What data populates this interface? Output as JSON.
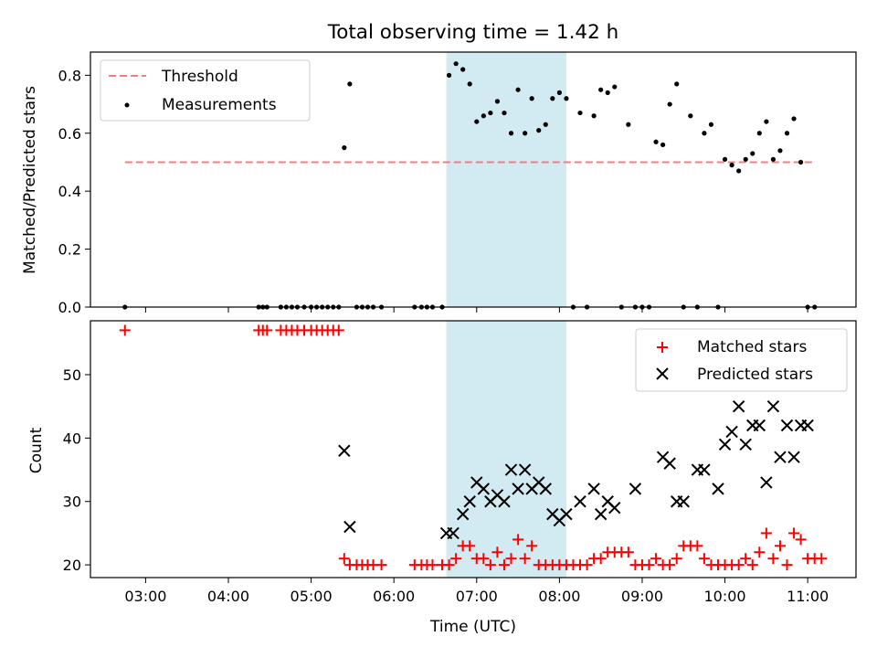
{
  "figure": {
    "title": "Total observing time = 1.42 h"
  },
  "highlight": {
    "x_start": "06:38",
    "x_end": "08:05",
    "color": "#add8e6"
  },
  "colors": {
    "threshold": "#f08080",
    "matched": "#ff0000",
    "predicted": "#000000",
    "measurement": "#000000"
  },
  "chart_data": [
    {
      "type": "scatter",
      "ylabel": "Matched/Predicted stars",
      "xlabel": "",
      "ylim": [
        0,
        0.88
      ],
      "yticks": [
        "0.0",
        "0.2",
        "0.4",
        "0.6",
        "0.8"
      ],
      "legend": {
        "placement": "top-left",
        "entries": [
          "Threshold",
          "Measurements"
        ]
      },
      "series": [
        {
          "name": "Threshold",
          "style": "dashed-line",
          "x": [
            "02:45",
            "11:05"
          ],
          "y": [
            0.5,
            0.5
          ]
        },
        {
          "name": "Measurements",
          "style": "dot",
          "x": [
            "02:45",
            "04:22",
            "04:25",
            "04:28",
            "04:38",
            "04:42",
            "04:46",
            "04:50",
            "04:55",
            "05:00",
            "05:04",
            "05:08",
            "05:12",
            "05:16",
            "05:20",
            "05:24",
            "05:28",
            "05:33",
            "05:37",
            "05:41",
            "05:45",
            "05:51",
            "06:15",
            "06:20",
            "06:24",
            "06:28",
            "06:35",
            "06:40",
            "06:45",
            "06:50",
            "06:55",
            "07:00",
            "07:05",
            "07:10",
            "07:15",
            "07:20",
            "07:25",
            "07:30",
            "07:35",
            "07:40",
            "07:45",
            "07:50",
            "07:55",
            "08:00",
            "08:05",
            "08:10",
            "08:15",
            "08:20",
            "08:25",
            "08:30",
            "08:35",
            "08:40",
            "08:45",
            "08:50",
            "08:55",
            "09:00",
            "09:05",
            "09:10",
            "09:15",
            "09:20",
            "09:25",
            "09:30",
            "09:35",
            "09:40",
            "09:45",
            "09:50",
            "09:55",
            "10:00",
            "10:05",
            "10:10",
            "10:15",
            "10:20",
            "10:25",
            "10:30",
            "10:35",
            "10:40",
            "10:45",
            "10:50",
            "10:55",
            "11:00",
            "11:05"
          ],
          "y": [
            0,
            0,
            0,
            0,
            0,
            0,
            0,
            0,
            0,
            0,
            0,
            0,
            0,
            0,
            0,
            0.55,
            0.77,
            0,
            0,
            0,
            0,
            0,
            0,
            0,
            0,
            0,
            0,
            0.8,
            0.84,
            0.82,
            0.77,
            0.64,
            0.66,
            0.67,
            0.71,
            0.67,
            0.6,
            0.75,
            0.6,
            0.72,
            0.61,
            0.63,
            0.72,
            0.74,
            0.72,
            0,
            0.67,
            0,
            0.66,
            0.75,
            0.74,
            0.76,
            0,
            0.63,
            0,
            0,
            0,
            0.57,
            0.56,
            0.7,
            0.77,
            0,
            0.66,
            0,
            0.6,
            0.63,
            0,
            0.51,
            0.49,
            0.47,
            0.51,
            0.53,
            0.6,
            0.64,
            0.51,
            0.54,
            0.6,
            0.65,
            0.5,
            0,
            0
          ]
        }
      ]
    },
    {
      "type": "scatter",
      "ylabel": "Count",
      "xlabel": "Time (UTC)",
      "ylim": [
        18,
        58.5
      ],
      "yticks": [
        "20",
        "30",
        "40",
        "50"
      ],
      "xticks": [
        "03:00",
        "04:00",
        "05:00",
        "06:00",
        "07:00",
        "08:00",
        "09:00",
        "10:00",
        "11:00"
      ],
      "xlim": [
        "02:20",
        "11:35"
      ],
      "legend": {
        "placement": "top-right",
        "entries": [
          "Matched stars",
          "Predicted stars"
        ]
      },
      "series": [
        {
          "name": "Matched stars",
          "style": "plus",
          "x": [
            "02:45",
            "04:22",
            "04:25",
            "04:28",
            "04:38",
            "04:42",
            "04:46",
            "04:50",
            "04:55",
            "05:00",
            "05:04",
            "05:08",
            "05:12",
            "05:16",
            "05:20",
            "05:24",
            "05:28",
            "05:33",
            "05:37",
            "05:41",
            "05:45",
            "05:51",
            "06:15",
            "06:20",
            "06:24",
            "06:28",
            "06:35",
            "06:40",
            "06:45",
            "06:50",
            "06:55",
            "07:00",
            "07:05",
            "07:10",
            "07:15",
            "07:20",
            "07:25",
            "07:30",
            "07:35",
            "07:40",
            "07:45",
            "07:50",
            "07:55",
            "08:00",
            "08:05",
            "08:10",
            "08:15",
            "08:20",
            "08:25",
            "08:30",
            "08:35",
            "08:40",
            "08:45",
            "08:50",
            "08:55",
            "09:00",
            "09:05",
            "09:10",
            "09:15",
            "09:20",
            "09:25",
            "09:30",
            "09:35",
            "09:40",
            "09:45",
            "09:50",
            "09:55",
            "10:00",
            "10:05",
            "10:10",
            "10:15",
            "10:20",
            "10:25",
            "10:30",
            "10:35",
            "10:40",
            "10:45",
            "10:50",
            "10:55",
            "11:00",
            "11:05",
            "11:10"
          ],
          "y": [
            57,
            57,
            57,
            57,
            57,
            57,
            57,
            57,
            57,
            57,
            57,
            57,
            57,
            57,
            57,
            21,
            20,
            20,
            20,
            20,
            20,
            20,
            20,
            20,
            20,
            20,
            20,
            20,
            21,
            23,
            23,
            21,
            21,
            20,
            22,
            20,
            21,
            24,
            21,
            23,
            20,
            20,
            20,
            20,
            20,
            20,
            20,
            20,
            21,
            21,
            22,
            22,
            22,
            22,
            20,
            20,
            20,
            21,
            20,
            20,
            21,
            23,
            23,
            23,
            21,
            20,
            20,
            20,
            20,
            20,
            21,
            20,
            22,
            25,
            21,
            23,
            20,
            25,
            24,
            21,
            21,
            21
          ]
        },
        {
          "name": "Predicted stars",
          "style": "x",
          "x": [
            "05:24",
            "05:28",
            "06:38",
            "06:43",
            "06:50",
            "06:55",
            "07:00",
            "07:05",
            "07:10",
            "07:15",
            "07:20",
            "07:25",
            "07:30",
            "07:35",
            "07:40",
            "07:45",
            "07:50",
            "07:55",
            "08:00",
            "08:05",
            "08:15",
            "08:25",
            "08:30",
            "08:35",
            "08:40",
            "08:55",
            "09:15",
            "09:20",
            "09:25",
            "09:30",
            "09:40",
            "09:45",
            "09:55",
            "10:00",
            "10:05",
            "10:10",
            "10:15",
            "10:20",
            "10:25",
            "10:30",
            "10:35",
            "10:40",
            "10:45",
            "10:50",
            "10:55",
            "11:00"
          ],
          "y": [
            38,
            26,
            25,
            25,
            28,
            30,
            33,
            32,
            30,
            31,
            30,
            35,
            32,
            35,
            32,
            33,
            32,
            28,
            27,
            28,
            30,
            32,
            28,
            30,
            29,
            32,
            37,
            36,
            30,
            30,
            35,
            35,
            32,
            39,
            41,
            45,
            39,
            42,
            42,
            33,
            45,
            37,
            42,
            37,
            42,
            42
          ]
        }
      ]
    }
  ]
}
